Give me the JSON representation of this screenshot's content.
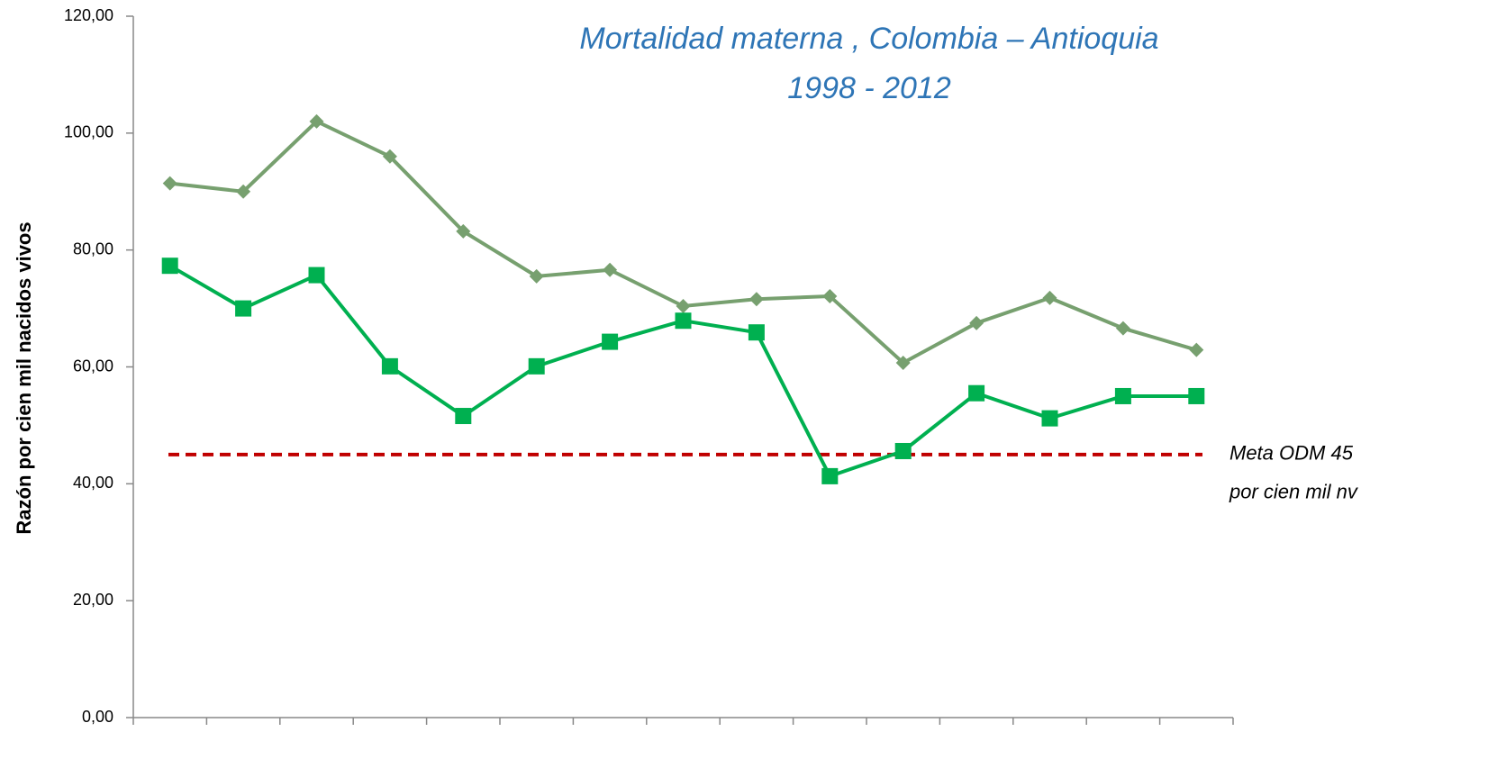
{
  "chart_data": {
    "type": "line",
    "title": [
      "Mortalidad materna , Colombia – Antioquia",
      "1998 - 2012"
    ],
    "y_label": "Razón por cien mil nacidos vivos",
    "categories": [
      null,
      null,
      null,
      null,
      null,
      null,
      null,
      null,
      null,
      null,
      null,
      null,
      null,
      null,
      null
    ],
    "series": [
      {
        "color": "#77a06f",
        "marker": "diamond",
        "values": [
          91.4,
          90.0,
          102.0,
          96.0,
          83.2,
          75.5,
          76.6,
          70.4,
          71.6,
          72.1,
          60.7,
          67.5,
          71.8,
          66.6,
          62.9
        ]
      },
      {
        "color": "#00b050",
        "marker": "square",
        "values": [
          77.3,
          70.0,
          75.7,
          60.1,
          51.6,
          60.1,
          64.3,
          67.9,
          65.9,
          41.3,
          45.6,
          55.5,
          51.2,
          55.0,
          55.0
        ]
      }
    ],
    "reference_line": {
      "value": 45,
      "color": "#c00000",
      "label": [
        "Meta ODM 45",
        "por cien mil nv"
      ]
    },
    "ylim": [
      0,
      120
    ],
    "yticks": [
      {
        "value": 0,
        "label": "0,00"
      },
      {
        "value": 20,
        "label": "20,00"
      },
      {
        "value": 40,
        "label": "40,00"
      },
      {
        "value": 60,
        "label": "60,00"
      },
      {
        "value": 80,
        "label": "80,00"
      },
      {
        "value": 100,
        "label": "100,00"
      },
      {
        "value": 120,
        "label": "120,00"
      }
    ],
    "grid": false
  }
}
